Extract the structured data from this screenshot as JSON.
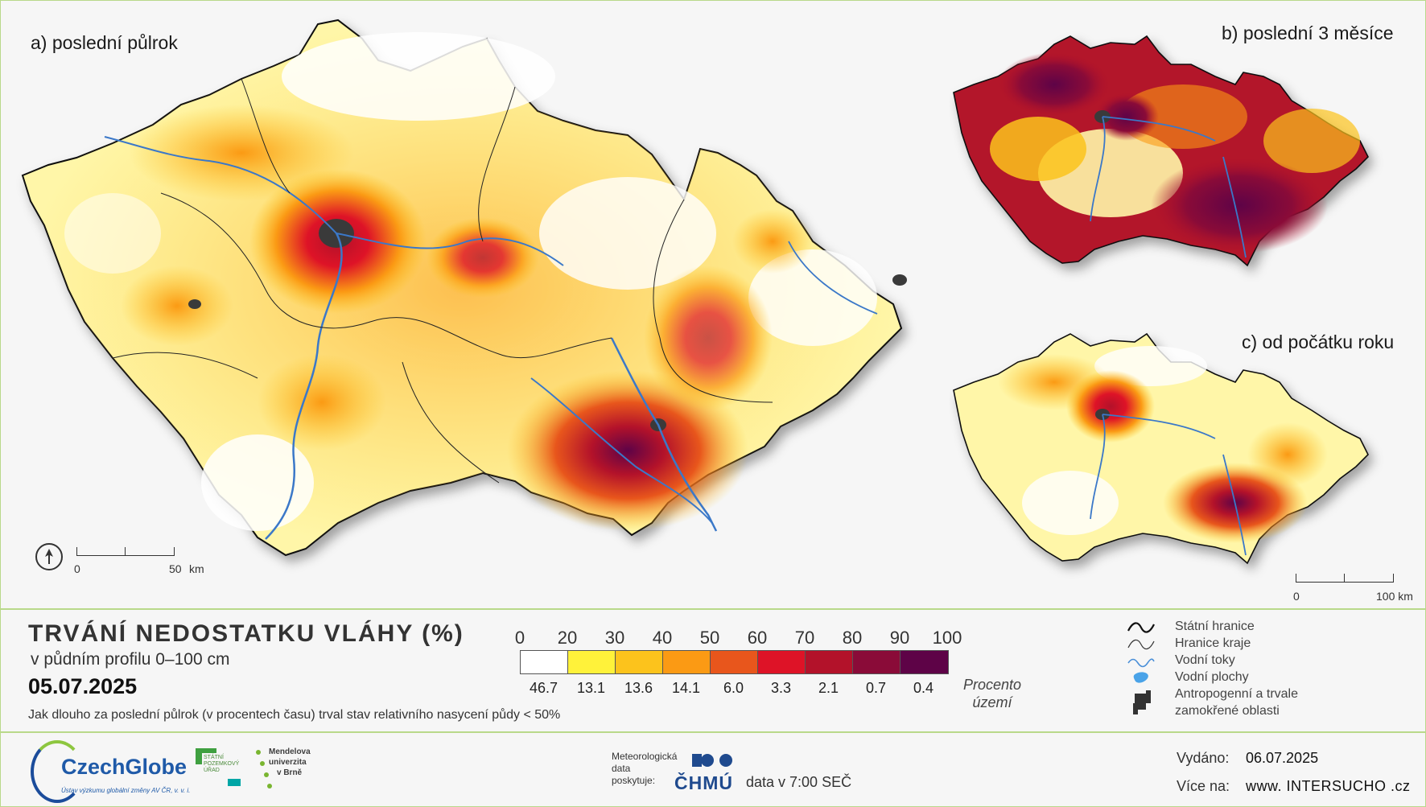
{
  "panels": {
    "a_label": "a) poslední půlrok",
    "b_label": "b) poslední 3 měsíce",
    "c_label": "c) od počátku roku"
  },
  "scalebar_a": {
    "start": "0",
    "end": "50",
    "unit": "km"
  },
  "scalebar_c": {
    "start": "0",
    "end": "100 km"
  },
  "title": {
    "main": "TRVÁNÍ NEDOSTATKU VLÁHY (%)",
    "sub": "v půdním profilu 0–100 cm",
    "date": "05.07.2025",
    "description": "Jak dlouho za poslední půlrok (v procentech času) trval stav relativního nasycení půdy < 50%"
  },
  "color_scale": {
    "ticks": [
      "0",
      "20",
      "30",
      "40",
      "50",
      "60",
      "70",
      "80",
      "90",
      "100"
    ],
    "colors": [
      "#ffffff",
      "#fff23a",
      "#fcc31c",
      "#fb9a14",
      "#e8561c",
      "#de1327",
      "#b3122a",
      "#8a0b38",
      "#5e0347"
    ],
    "percent_area": [
      "46.7",
      "13.1",
      "13.6",
      "14.1",
      "6.0",
      "3.3",
      "2.1",
      "0.7",
      "0.4"
    ],
    "percent_label_1": "Procento",
    "percent_label_2": "území"
  },
  "legend": {
    "state_border": "Státní hranice",
    "region_border": "Hranice kraje",
    "rivers": "Vodní toky",
    "water_bodies": "Vodní plochy",
    "anthropogenic_1": "Antropogenní a trvale",
    "anthropogenic_2": "zamokřené oblasti"
  },
  "footer": {
    "czechglobe": "CzechGlobe",
    "czechglobe_tag": "Ústav výzkumu globální změny AV ČR, v. v. i.",
    "spu_1": "STÁTNÍ",
    "spu_2": "POZEMKOVÝ",
    "spu_3": "ÚŘAD",
    "mendel_1": "Mendelova",
    "mendel_2": "univerzita",
    "mendel_3": "v Brně",
    "met_1": "Meteorologická",
    "met_2": "data",
    "met_3": "poskytuje:",
    "chmu": "ČHMÚ",
    "data_time": "data v 7:00 SEČ",
    "issued_label": "Vydáno:",
    "issued_value": "06.07.2025",
    "more_label": "Více na:",
    "more_value": "www. INTERSUCHO .cz"
  }
}
